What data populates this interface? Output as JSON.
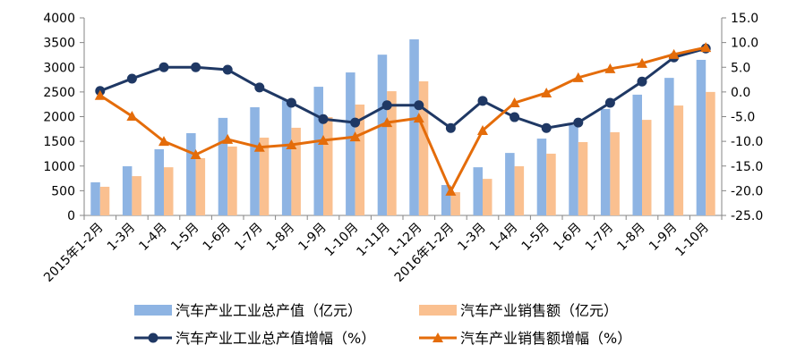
{
  "chart_data": {
    "type": "bar",
    "categories": [
      "2015年1-2月",
      "1-3月",
      "1-4月",
      "1-5月",
      "1-6月",
      "1-7月",
      "1-8月",
      "1-9月",
      "1-10月",
      "1-11月",
      "1-12月",
      "2016年1-2月",
      "1-3月",
      "1-4月",
      "1-5月",
      "1-6月",
      "1-7月",
      "1-8月",
      "1-9月",
      "1-10月"
    ],
    "left_axis": {
      "ylim": [
        0,
        4000
      ],
      "ticks": [
        "0",
        "500",
        "1000",
        "1500",
        "2000",
        "2500",
        "3000",
        "3500",
        "4000"
      ]
    },
    "right_axis": {
      "ylim": [
        -25,
        15
      ],
      "ticks": [
        "-25.0",
        "-20.0",
        "-15.0",
        "-10.0",
        "-5.0",
        "0.0",
        "5.0",
        "10.0",
        "15.0"
      ]
    },
    "series": [
      {
        "name": "汽车产业工业总产值（亿元）",
        "kind": "bar",
        "axis": "left",
        "color": "#8EB4E3",
        "values": [
          670,
          995,
          1340,
          1665,
          1975,
          2190,
          2330,
          2605,
          2895,
          3255,
          3565,
          615,
          975,
          1265,
          1555,
          1830,
          2155,
          2445,
          2785,
          3150
        ]
      },
      {
        "name": "汽车产业销售额（亿元）",
        "kind": "bar",
        "axis": "left",
        "color": "#FAC090",
        "values": [
          580,
          795,
          975,
          1160,
          1395,
          1575,
          1775,
          1990,
          2245,
          2515,
          2715,
          470,
          740,
          995,
          1250,
          1485,
          1685,
          1935,
          2225,
          2500
        ]
      },
      {
        "name": "汽车产业工业总产值增幅（%）",
        "kind": "line",
        "axis": "right",
        "color": "#1F3864",
        "values": [
          0.2,
          2.7,
          5.0,
          5.0,
          4.5,
          0.9,
          -2.2,
          -5.5,
          -6.2,
          -2.7,
          -2.7,
          -7.3,
          -1.8,
          -5.1,
          -7.3,
          -6.2,
          -2.2,
          2.1,
          7.0,
          8.8
        ]
      },
      {
        "name": "汽车产业销售额增幅（%）",
        "kind": "line",
        "axis": "right",
        "color": "#E46C0A",
        "values": [
          -0.7,
          -4.9,
          -10.0,
          -12.7,
          -9.6,
          -11.2,
          -10.7,
          -9.8,
          -9.1,
          -6.2,
          -5.3,
          -20.1,
          -7.8,
          -2.2,
          -0.2,
          2.9,
          4.7,
          5.8,
          7.6,
          9.0
        ]
      }
    ],
    "title": "",
    "grid": false,
    "legend": "bottom"
  }
}
